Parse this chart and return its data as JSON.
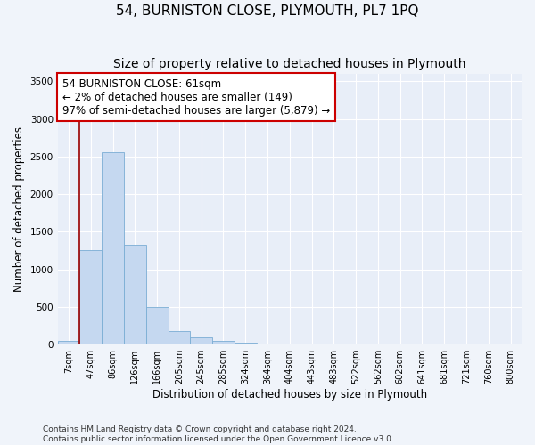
{
  "title": "54, BURNISTON CLOSE, PLYMOUTH, PL7 1PQ",
  "subtitle": "Size of property relative to detached houses in Plymouth",
  "xlabel": "Distribution of detached houses by size in Plymouth",
  "ylabel": "Number of detached properties",
  "bin_labels": [
    "7sqm",
    "47sqm",
    "86sqm",
    "126sqm",
    "166sqm",
    "205sqm",
    "245sqm",
    "285sqm",
    "324sqm",
    "364sqm",
    "404sqm",
    "443sqm",
    "483sqm",
    "522sqm",
    "562sqm",
    "602sqm",
    "641sqm",
    "681sqm",
    "721sqm",
    "760sqm",
    "800sqm"
  ],
  "bar_heights": [
    50,
    1250,
    2560,
    1330,
    500,
    175,
    100,
    50,
    30,
    10,
    5,
    0,
    0,
    0,
    0,
    0,
    0,
    0,
    0,
    0,
    0
  ],
  "bar_color": "#c5d8f0",
  "bar_edge_color": "#7aadd4",
  "property_line_x": 1,
  "annotation_text": "54 BURNISTON CLOSE: 61sqm\n← 2% of detached houses are smaller (149)\n97% of semi-detached houses are larger (5,879) →",
  "annotation_box_color": "#ffffff",
  "annotation_box_edge": "#cc0000",
  "property_line_color": "#990000",
  "ylim": [
    0,
    3600
  ],
  "yticks": [
    0,
    500,
    1000,
    1500,
    2000,
    2500,
    3000,
    3500
  ],
  "footer_line1": "Contains HM Land Registry data © Crown copyright and database right 2024.",
  "footer_line2": "Contains public sector information licensed under the Open Government Licence v3.0.",
  "background_color": "#f0f4fa",
  "plot_background": "#e8eef8",
  "grid_color": "#ffffff",
  "title_fontsize": 11,
  "subtitle_fontsize": 10,
  "label_fontsize": 8.5,
  "tick_fontsize": 7.5,
  "annotation_fontsize": 8.5,
  "footer_fontsize": 6.5
}
